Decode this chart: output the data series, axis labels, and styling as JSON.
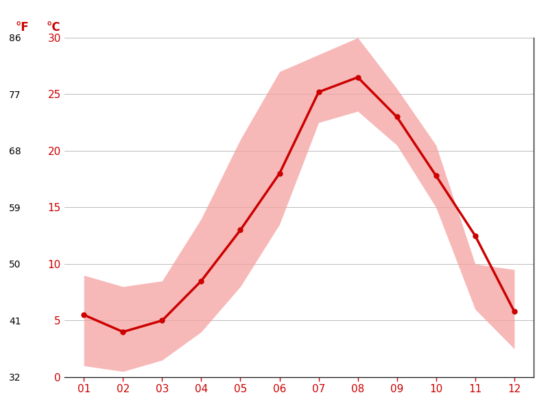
{
  "months": [
    1,
    2,
    3,
    4,
    5,
    6,
    7,
    8,
    9,
    10,
    11,
    12
  ],
  "month_labels": [
    "01",
    "02",
    "03",
    "04",
    "05",
    "06",
    "07",
    "08",
    "09",
    "10",
    "11",
    "12"
  ],
  "mean_temp_c": [
    5.5,
    4.0,
    5.0,
    8.5,
    13.0,
    18.0,
    25.2,
    26.5,
    23.0,
    17.8,
    12.5,
    5.8
  ],
  "max_temp_c": [
    9.0,
    8.0,
    8.5,
    14.0,
    21.0,
    27.0,
    28.5,
    30.0,
    25.5,
    20.5,
    10.0,
    9.5
  ],
  "min_temp_c": [
    1.0,
    0.5,
    1.5,
    4.0,
    8.0,
    13.5,
    22.5,
    23.5,
    20.5,
    15.0,
    6.0,
    2.5
  ],
  "yticks_c": [
    0,
    5,
    10,
    15,
    20,
    25,
    30
  ],
  "yticks_f": [
    32,
    41,
    50,
    59,
    68,
    77,
    86
  ],
  "ymin": 0,
  "ymax": 30,
  "line_color": "#cc0000",
  "fill_color": "#f5a0a0",
  "fill_alpha": 0.75,
  "background_color": "#ffffff",
  "grid_color": "#bbbbbb",
  "label_color": "#cc0000",
  "tick_label_color": "#cc0000",
  "line_width": 2.5,
  "marker_size": 5,
  "label_fontsize": 11,
  "header_fontsize": 12
}
